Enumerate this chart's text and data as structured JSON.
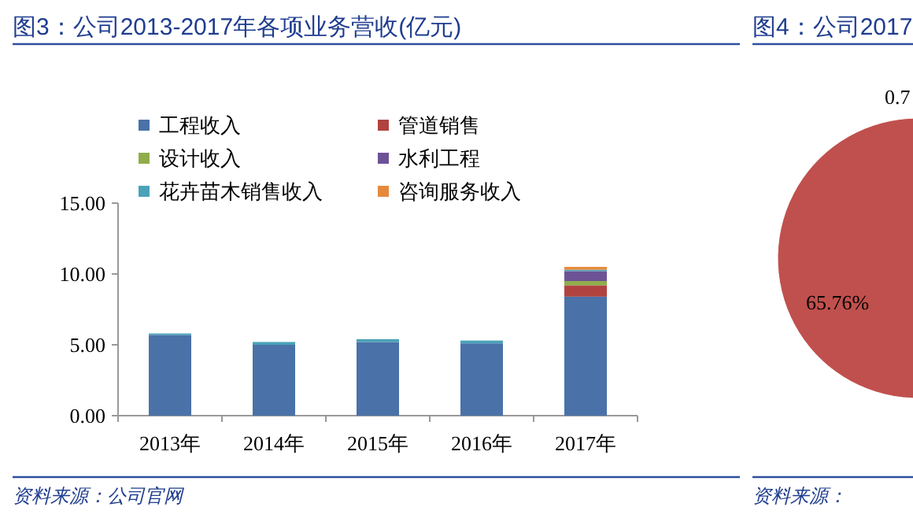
{
  "chart_data": [
    {
      "type": "bar",
      "title": "图3：公司2013-2017年各项业务营收(亿元)",
      "stacked": true,
      "legend": "top",
      "categories": [
        "2013年",
        "2014年",
        "2015年",
        "2016年",
        "2017年"
      ],
      "series": [
        {
          "name": "工程收入",
          "color": "#4a72a8",
          "values": [
            5.7,
            5.0,
            5.2,
            5.1,
            8.4
          ]
        },
        {
          "name": "管道销售",
          "color": "#b0433f",
          "values": [
            null,
            null,
            null,
            null,
            0.8
          ]
        },
        {
          "name": "设计收入",
          "color": "#8fad4a",
          "values": [
            null,
            null,
            null,
            null,
            0.3
          ]
        },
        {
          "name": "水利工程",
          "color": "#6d5396",
          "values": [
            null,
            null,
            null,
            null,
            0.7
          ]
        },
        {
          "name": "花卉苗木销售收入",
          "color": "#4aa2b8",
          "values": [
            0.1,
            0.2,
            0.2,
            0.2,
            0.1
          ]
        },
        {
          "name": "咨询服务收入",
          "color": "#e58a3c",
          "values": [
            null,
            null,
            null,
            null,
            0.2
          ]
        }
      ],
      "ylim": [
        0,
        15
      ],
      "yticks": [
        {
          "value": 0,
          "label": "0.00"
        },
        {
          "value": 5,
          "label": "5.00"
        },
        {
          "value": 10,
          "label": "10.00"
        },
        {
          "value": 15,
          "label": "15.00"
        }
      ],
      "annotations": [
        "资料来源：公司官网"
      ]
    },
    {
      "type": "pie",
      "title": "图4：公司2017",
      "categories": [
        null
      ],
      "values": [
        65.76
      ],
      "colors": [
        "#c0504d"
      ],
      "value_labels": [
        "65.76%"
      ],
      "annotations": [
        "0.7",
        "资料来源："
      ]
    }
  ]
}
